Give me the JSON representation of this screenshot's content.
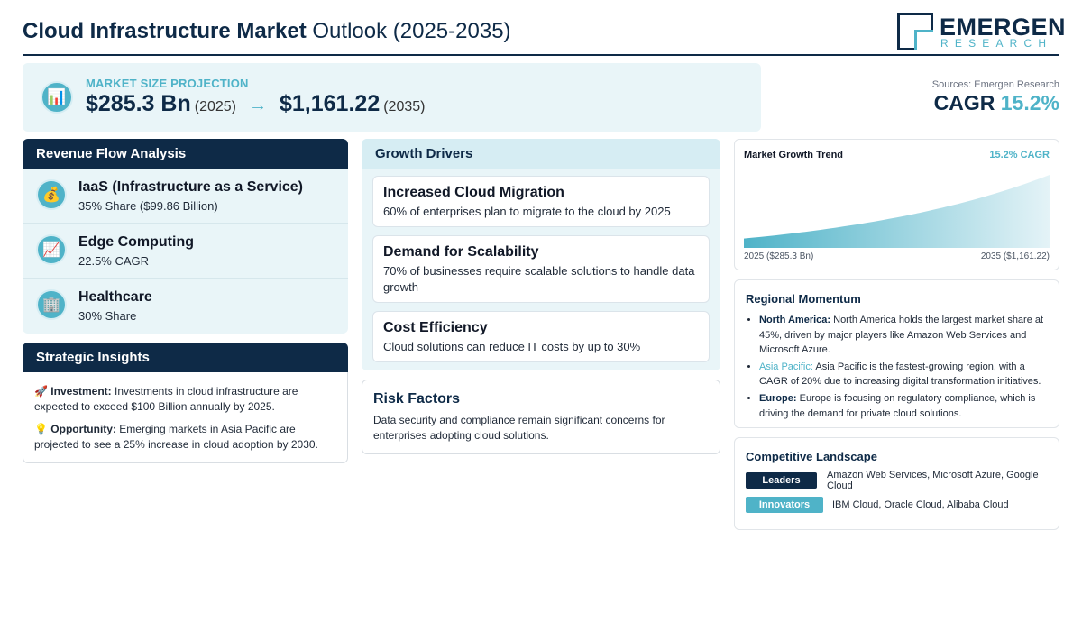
{
  "header": {
    "title_bold": "Cloud Infrastructure Market",
    "title_light": "Outlook (2025-2035)",
    "logo_main": "EMERGEN",
    "logo_sub": "RESEARCH"
  },
  "projection": {
    "icon": "bar-chart-icon",
    "label": "MARKET SIZE PROJECTION",
    "start_value": "$285.3 Bn",
    "start_year": "(2025)",
    "arrow": "→",
    "end_value": "$1,161.22",
    "end_year": "(2035)"
  },
  "cagr": {
    "sources": "Sources: Emergen Research",
    "label": "CAGR",
    "value": "15.2%"
  },
  "revenue_flow": {
    "title": "Revenue Flow Analysis",
    "items": [
      {
        "icon": "money-bag-icon",
        "glyph": "💰",
        "title": "IaaS (Infrastructure as a Service)",
        "sub": "35% Share ($99.86 Billion)"
      },
      {
        "icon": "trend-up-icon",
        "glyph": "📈",
        "title": "Edge Computing",
        "sub": "22.5% CAGR"
      },
      {
        "icon": "building-icon",
        "glyph": "🏢",
        "title": "Healthcare",
        "sub": "30% Share"
      }
    ]
  },
  "strategic_insights": {
    "title": "Strategic Insights",
    "items": [
      {
        "icon": "rocket-icon",
        "glyph": "🚀",
        "label": "Investment:",
        "text": "Investments in cloud infrastructure are expected to exceed $100 Billion annually by 2025."
      },
      {
        "icon": "lightbulb-icon",
        "glyph": "💡",
        "label": "Opportunity:",
        "text": "Emerging markets in Asia Pacific are projected to see a 25% increase in cloud adoption by 2030."
      }
    ]
  },
  "growth_drivers": {
    "title": "Growth Drivers",
    "items": [
      {
        "title": "Increased Cloud Migration",
        "sub": "60% of enterprises plan to migrate to the cloud by 2025"
      },
      {
        "title": "Demand for Scalability",
        "sub": "70% of businesses require scalable solutions to handle data growth"
      },
      {
        "title": "Cost Efficiency",
        "sub": "Cloud solutions can reduce IT costs by up to 30%"
      }
    ]
  },
  "risk_factors": {
    "title": "Risk Factors",
    "text": "Data security and compliance remain significant concerns for enterprises adopting cloud solutions."
  },
  "chart_data": {
    "type": "area",
    "title": "Market Growth Trend",
    "annotation": "15.2% CAGR",
    "x": [
      2025,
      2035
    ],
    "x_labels": [
      "2025 ($285.3 Bn)",
      "2035 ($1,161.22)"
    ],
    "series": [
      {
        "values": [
          285.3,
          1161.22
        ],
        "color": "#4fb3c8"
      }
    ],
    "grid": false,
    "legend": "none"
  },
  "regional": {
    "title": "Regional Momentum",
    "items": [
      {
        "label": "North America:",
        "style": "dark",
        "text": "North America holds the largest market share at 45%, driven by major players like Amazon Web Services and Microsoft Azure."
      },
      {
        "label": "Asia Pacific:",
        "style": "teal",
        "text": "Asia Pacific is the fastest-growing region, with a CAGR of 20% due to increasing digital transformation initiatives."
      },
      {
        "label": "Europe:",
        "style": "dark",
        "text": "Europe is focusing on regulatory compliance, which is driving the demand for private cloud solutions."
      }
    ]
  },
  "competitive": {
    "title": "Competitive Landscape",
    "rows": [
      {
        "badge": "Leaders",
        "color": "#0e2a47",
        "text": "Amazon Web Services, Microsoft Azure, Google Cloud"
      },
      {
        "badge": "Innovators",
        "color": "#4fb3c8",
        "text": "IBM Cloud, Oracle Cloud, Alibaba Cloud"
      }
    ]
  }
}
